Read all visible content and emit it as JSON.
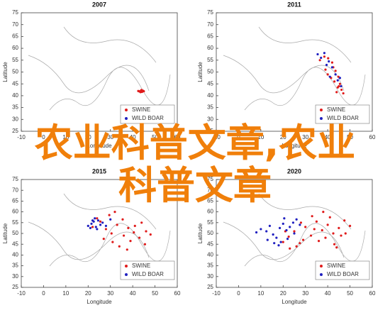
{
  "chart_data": [
    {
      "type": "scatter",
      "title": "2007",
      "xlabel": "Longitude",
      "ylabel": "Latitude",
      "xlim": [
        -10,
        60
      ],
      "ylim": [
        25,
        75
      ],
      "xticks": [
        -10,
        0,
        10,
        20,
        30,
        40,
        50,
        60
      ],
      "yticks": [
        25,
        30,
        35,
        40,
        45,
        50,
        55,
        60,
        65,
        70,
        75
      ],
      "series": [
        {
          "name": "SWINE",
          "color": "#e01b1b",
          "x": [
            42.5,
            43.1,
            43.8,
            44.2,
            44.6,
            45.0,
            43.5,
            44.0,
            42.8
          ],
          "values": [
            42.0,
            41.8,
            42.3,
            41.6,
            42.1,
            41.9,
            41.5,
            42.4,
            41.9
          ]
        },
        {
          "name": "WILD BOAR",
          "color": "#2020c0",
          "x": [],
          "values": []
        }
      ]
    },
    {
      "type": "scatter",
      "title": "2011",
      "xlabel": "Longitude",
      "ylabel": "Latitude",
      "xlim": [
        -10,
        60
      ],
      "ylim": [
        25,
        75
      ],
      "xticks": [
        -10,
        0,
        10,
        20,
        30,
        40,
        50,
        60
      ],
      "yticks": [
        25,
        30,
        35,
        40,
        45,
        50,
        55,
        60,
        65,
        70,
        75
      ],
      "series": [
        {
          "name": "SWINE",
          "color": "#e01b1b",
          "x": [
            38.5,
            40.2,
            42.0,
            43.5,
            44.8,
            45.5,
            46.2,
            44.0,
            41.5,
            39.0,
            36.5,
            45.0,
            47.0,
            43.0,
            40.0,
            44.5,
            42.5
          ],
          "values": [
            56.5,
            55.8,
            54.0,
            50.5,
            48.0,
            45.0,
            42.5,
            41.5,
            47.5,
            51.0,
            55.0,
            44.0,
            41.0,
            46.0,
            49.0,
            43.5,
            52.0
          ]
        },
        {
          "name": "WILD BOAR",
          "color": "#2020c0",
          "x": [
            35.5,
            37.0,
            38.5,
            40.5,
            42.0,
            43.5,
            44.5,
            46.0,
            41.0,
            39.5,
            45.5
          ],
          "values": [
            57.5,
            56.0,
            58.0,
            54.5,
            52.0,
            49.0,
            46.5,
            44.0,
            48.0,
            53.0,
            47.5
          ]
        }
      ]
    },
    {
      "type": "scatter",
      "title": "2015",
      "xlabel": "Longitude",
      "ylabel": "Latitude",
      "xlim": [
        -10,
        60
      ],
      "ylim": [
        25,
        75
      ],
      "xticks": [
        -10,
        0,
        10,
        20,
        30,
        40,
        50,
        60
      ],
      "yticks": [
        25,
        30,
        35,
        40,
        45,
        50,
        55,
        60,
        65,
        70,
        75
      ],
      "series": [
        {
          "name": "SWINE",
          "color": "#e01b1b",
          "x": [
            22.0,
            25.5,
            28.0,
            30.5,
            33.0,
            35.5,
            38.0,
            40.5,
            43.0,
            45.5,
            27.0,
            31.0,
            36.0,
            41.0,
            46.0,
            24.0,
            29.5,
            34.0,
            39.0,
            44.0,
            48.0,
            32.0,
            37.5
          ],
          "values": [
            53.0,
            55.5,
            52.0,
            50.0,
            54.0,
            56.5,
            52.5,
            50.5,
            48.0,
            45.0,
            47.5,
            46.0,
            49.0,
            53.5,
            51.0,
            57.0,
            58.5,
            44.0,
            46.5,
            55.0,
            49.5,
            60.0,
            42.5
          ]
        },
        {
          "name": "WILD BOAR",
          "color": "#2020c0",
          "x": [
            20.0,
            21.5,
            22.5,
            23.5,
            24.5,
            21.0,
            23.0,
            25.5,
            26.5,
            28.0,
            30.0,
            22.0,
            24.0
          ],
          "values": [
            53.5,
            54.5,
            55.5,
            53.0,
            56.0,
            52.5,
            57.0,
            54.0,
            55.0,
            53.5,
            56.5,
            56.0,
            52.0
          ]
        }
      ]
    },
    {
      "type": "scatter",
      "title": "2020",
      "xlabel": "Longitude",
      "ylabel": "Latitude",
      "xlim": [
        -10,
        60
      ],
      "ylim": [
        25,
        75
      ],
      "xticks": [
        -10,
        0,
        10,
        20,
        30,
        40,
        50,
        60
      ],
      "yticks": [
        25,
        30,
        35,
        40,
        45,
        50,
        55,
        60,
        65,
        70,
        75
      ],
      "series": [
        {
          "name": "SWINE",
          "color": "#e01b1b",
          "x": [
            20.0,
            22.5,
            25.0,
            27.5,
            30.0,
            32.5,
            35.0,
            37.5,
            40.0,
            42.5,
            45.0,
            47.5,
            50.0,
            23.0,
            26.0,
            29.0,
            33.0,
            36.0,
            39.0,
            43.0,
            46.0,
            21.0,
            28.0,
            34.0,
            41.0,
            48.0,
            44.0,
            38.0
          ],
          "values": [
            46.0,
            48.5,
            51.0,
            45.5,
            53.0,
            49.0,
            55.5,
            51.5,
            54.0,
            50.0,
            52.5,
            56.0,
            53.5,
            43.0,
            44.0,
            47.0,
            58.0,
            46.5,
            48.0,
            45.0,
            49.0,
            51.0,
            55.0,
            52.0,
            57.5,
            50.0,
            43.5,
            60.0
          ]
        },
        {
          "name": "WILD BOAR",
          "color": "#2020c0",
          "x": [
            8.0,
            10.0,
            12.5,
            14.0,
            15.5,
            17.0,
            18.5,
            20.0,
            21.5,
            23.0,
            24.5,
            26.0,
            19.0,
            22.0,
            16.0,
            25.0,
            13.0,
            20.5,
            27.5,
            18.0
          ],
          "values": [
            50.5,
            52.0,
            51.0,
            53.5,
            49.5,
            48.0,
            52.5,
            54.5,
            51.5,
            53.0,
            55.0,
            56.5,
            46.0,
            47.5,
            45.5,
            50.0,
            47.0,
            57.0,
            54.0,
            44.5
          ]
        }
      ]
    }
  ],
  "overlay_text": "农业科普文章,农业科普文章"
}
